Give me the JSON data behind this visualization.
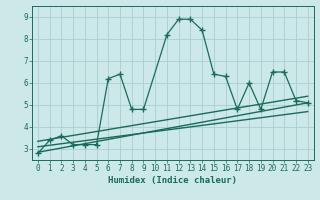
{
  "background_color": "#cce8e8",
  "grid_color": "#aad0d0",
  "line_color": "#1a6b5a",
  "xlabel": "Humidex (Indice chaleur)",
  "xlim": [
    -0.5,
    23.5
  ],
  "ylim": [
    2.5,
    9.5
  ],
  "yticks": [
    3,
    4,
    5,
    6,
    7,
    8,
    9
  ],
  "xticks": [
    0,
    1,
    2,
    3,
    4,
    5,
    6,
    7,
    8,
    9,
    10,
    11,
    12,
    13,
    14,
    15,
    16,
    17,
    18,
    19,
    20,
    21,
    22,
    23
  ],
  "main_curve": {
    "x": [
      0,
      1,
      2,
      3,
      4,
      5,
      6,
      7,
      8,
      9,
      11,
      12,
      13,
      14,
      15,
      16,
      17,
      18,
      19,
      20,
      21,
      22,
      23
    ],
    "y": [
      2.8,
      3.4,
      3.6,
      3.2,
      3.2,
      3.2,
      6.2,
      6.4,
      4.8,
      4.8,
      8.2,
      8.9,
      8.9,
      8.4,
      6.4,
      6.3,
      4.8,
      6.0,
      4.8,
      6.5,
      6.5,
      5.2,
      5.1
    ]
  },
  "straight_lines": [
    {
      "x": [
        0,
        23
      ],
      "y": [
        2.85,
        5.1
      ]
    },
    {
      "x": [
        0,
        23
      ],
      "y": [
        3.1,
        4.7
      ]
    },
    {
      "x": [
        0,
        23
      ],
      "y": [
        3.35,
        5.4
      ]
    }
  ]
}
